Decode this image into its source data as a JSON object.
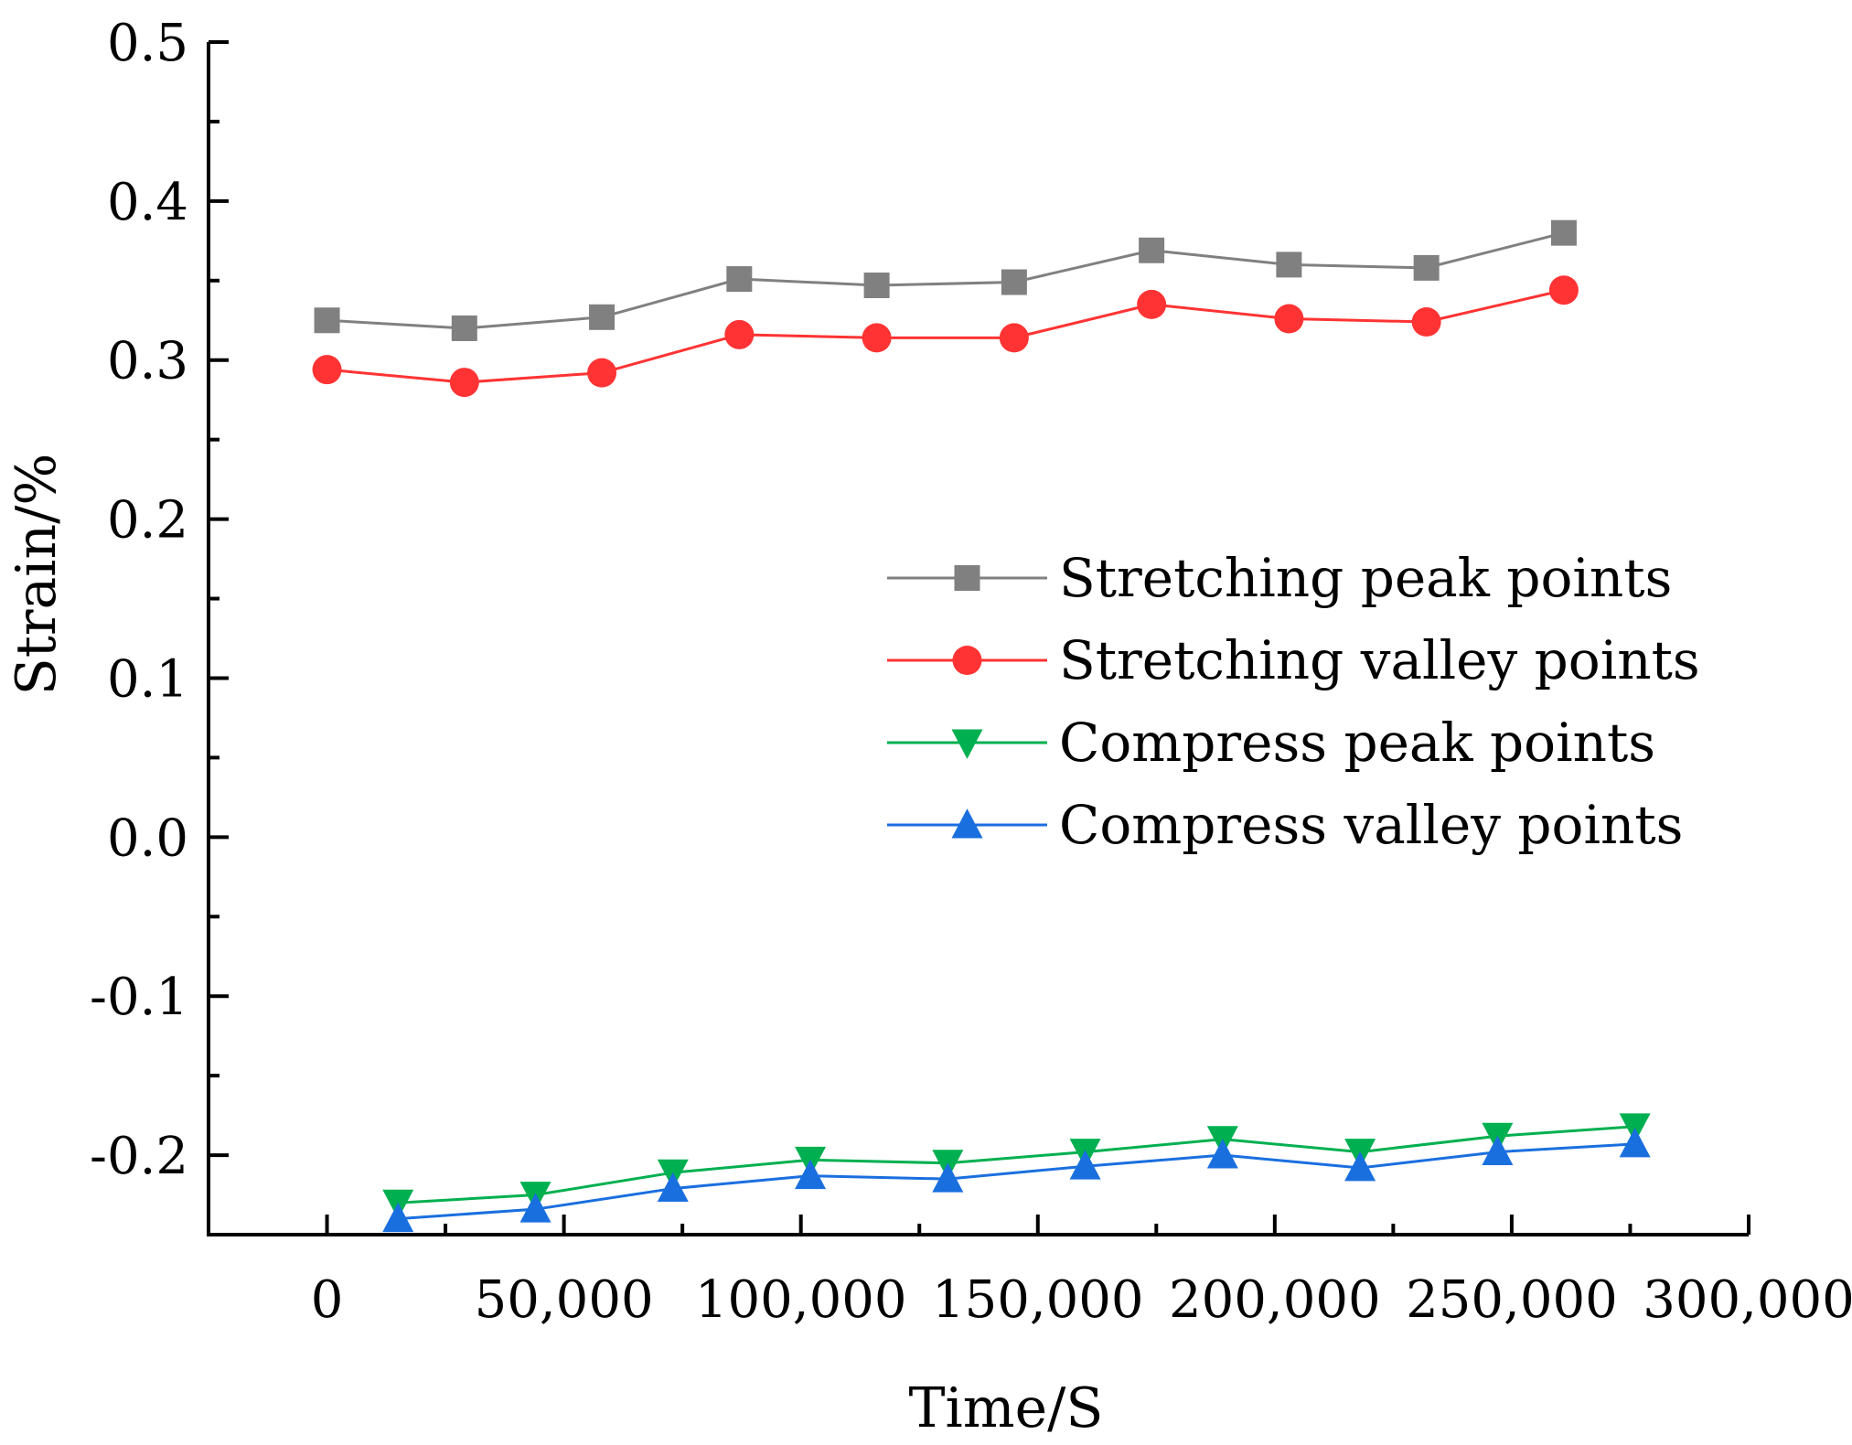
{
  "chart_data": {
    "type": "line",
    "title": "",
    "xlabel": "Time/S",
    "ylabel": "Strain/%",
    "xlim": [
      -25000,
      300000
    ],
    "ylim": [
      -0.25,
      0.5
    ],
    "x_ticks": [
      0,
      50000,
      100000,
      150000,
      200000,
      250000,
      300000
    ],
    "x_tick_labels": [
      "0",
      "50,000",
      "100,000",
      "150,000",
      "200,000",
      "250,000",
      "300,000"
    ],
    "y_ticks": [
      -0.2,
      -0.1,
      0.0,
      0.1,
      0.2,
      0.3,
      0.4,
      0.5
    ],
    "y_tick_labels": [
      "-0.2",
      "-0.1",
      "0.0",
      "0.1",
      "0.2",
      "0.3",
      "0.4",
      "0.5"
    ],
    "grid": false,
    "legend_position": "center-right",
    "series": [
      {
        "name": "Stretching peak points",
        "color": "#808080",
        "marker": "square",
        "x": [
          0,
          29000,
          58000,
          87000,
          116000,
          145000,
          174000,
          203000,
          232000,
          261000
        ],
        "values": [
          0.325,
          0.32,
          0.327,
          0.351,
          0.347,
          0.349,
          0.369,
          0.36,
          0.358,
          0.38
        ]
      },
      {
        "name": "Stretching valley points",
        "color": "#ff3333",
        "marker": "circle",
        "x": [
          0,
          29000,
          58000,
          87000,
          116000,
          145000,
          174000,
          203000,
          232000,
          261000
        ],
        "values": [
          0.294,
          0.286,
          0.292,
          0.316,
          0.314,
          0.314,
          0.335,
          0.326,
          0.324,
          0.344
        ]
      },
      {
        "name": "Compress peak points",
        "color": "#00b050",
        "marker": "triangle-down",
        "x": [
          15000,
          44000,
          73000,
          102000,
          131000,
          160000,
          189000,
          218000,
          247000,
          276000
        ],
        "values": [
          -0.23,
          -0.225,
          -0.211,
          -0.203,
          -0.205,
          -0.198,
          -0.19,
          -0.198,
          -0.188,
          -0.182
        ]
      },
      {
        "name": "Compress valley points",
        "color": "#1a6fdf",
        "marker": "triangle-up",
        "x": [
          15000,
          44000,
          73000,
          102000,
          131000,
          160000,
          189000,
          218000,
          247000,
          276000
        ],
        "values": [
          -0.24,
          -0.234,
          -0.221,
          -0.213,
          -0.215,
          -0.207,
          -0.2,
          -0.208,
          -0.198,
          -0.193
        ]
      }
    ]
  }
}
